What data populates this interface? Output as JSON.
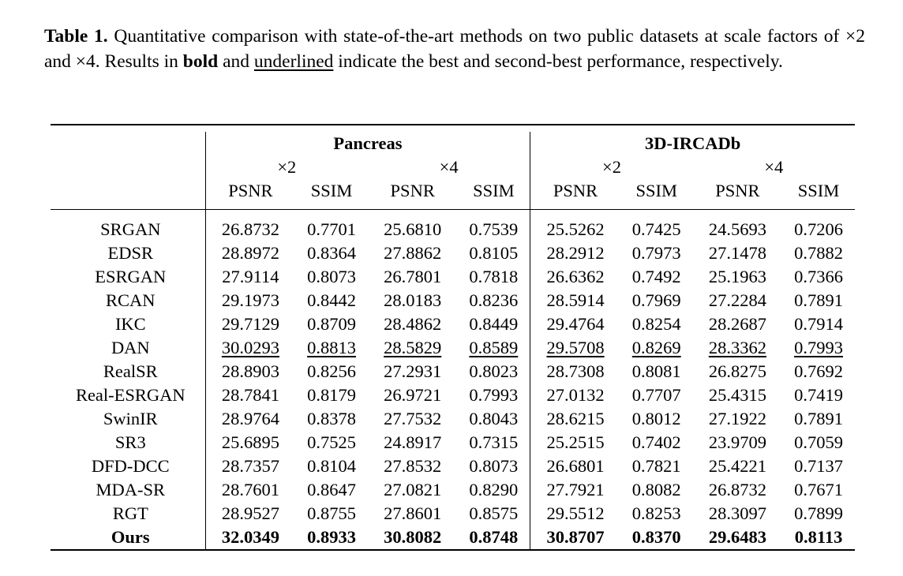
{
  "caption": {
    "label": "Table 1.",
    "text_1": " Quantitative comparison with state-of-the-art methods on two public datasets at scale factors of ×2 and ×4. Results in ",
    "bold_word": "bold",
    "text_2": " and ",
    "underlined_word": "underlined",
    "text_3": " indicate the best and second-best performance, respectively."
  },
  "table": {
    "datasets": [
      "Pancreas",
      "3D-IRCADb"
    ],
    "scales": [
      "×2",
      "×4",
      "×2",
      "×4"
    ],
    "metrics": [
      "PSNR",
      "SSIM",
      "PSNR",
      "SSIM",
      "PSNR",
      "SSIM",
      "PSNR",
      "SSIM"
    ],
    "rows": [
      {
        "method": "SRGAN",
        "values": [
          "26.8732",
          "0.7701",
          "25.6810",
          "0.7539",
          "25.5262",
          "0.7425",
          "24.5693",
          "0.7206"
        ]
      },
      {
        "method": "EDSR",
        "values": [
          "28.8972",
          "0.8364",
          "27.8862",
          "0.8105",
          "28.2912",
          "0.7973",
          "27.1478",
          "0.7882"
        ]
      },
      {
        "method": "ESRGAN",
        "values": [
          "27.9114",
          "0.8073",
          "26.7801",
          "0.7818",
          "26.6362",
          "0.7492",
          "25.1963",
          "0.7366"
        ]
      },
      {
        "method": "RCAN",
        "values": [
          "29.1973",
          "0.8442",
          "28.0183",
          "0.8236",
          "28.5914",
          "0.7969",
          "27.2284",
          "0.7891"
        ]
      },
      {
        "method": "IKC",
        "values": [
          "29.7129",
          "0.8709",
          "28.4862",
          "0.8449",
          "29.4764",
          "0.8254",
          "28.2687",
          "0.7914"
        ]
      },
      {
        "method": "DAN",
        "values": [
          "30.0293",
          "0.8813",
          "28.5829",
          "0.8589",
          "29.5708",
          "0.8269",
          "28.3362",
          "0.7993"
        ],
        "second_best": true
      },
      {
        "method": "RealSR",
        "values": [
          "28.8903",
          "0.8256",
          "27.2931",
          "0.8023",
          "28.7308",
          "0.8081",
          "26.8275",
          "0.7692"
        ]
      },
      {
        "method": "Real-ESRGAN",
        "values": [
          "28.7841",
          "0.8179",
          "26.9721",
          "0.7993",
          "27.0132",
          "0.7707",
          "25.4315",
          "0.7419"
        ]
      },
      {
        "method": "SwinIR",
        "values": [
          "28.9764",
          "0.8378",
          "27.7532",
          "0.8043",
          "28.6215",
          "0.8012",
          "27.1922",
          "0.7891"
        ]
      },
      {
        "method": "SR3",
        "values": [
          "25.6895",
          "0.7525",
          "24.8917",
          "0.7315",
          "25.2515",
          "0.7402",
          "23.9709",
          "0.7059"
        ]
      },
      {
        "method": "DFD-DCC",
        "values": [
          "28.7357",
          "0.8104",
          "27.8532",
          "0.8073",
          "26.6801",
          "0.7821",
          "25.4221",
          "0.7137"
        ]
      },
      {
        "method": "MDA-SR",
        "values": [
          "28.7601",
          "0.8647",
          "27.0821",
          "0.8290",
          "27.7921",
          "0.8082",
          "26.8732",
          "0.7671"
        ]
      },
      {
        "method": "RGT",
        "values": [
          "28.9527",
          "0.8755",
          "27.8601",
          "0.8575",
          "29.5512",
          "0.8253",
          "28.3097",
          "0.7899"
        ]
      },
      {
        "method": "Ours",
        "values": [
          "32.0349",
          "0.8933",
          "30.8082",
          "0.8748",
          "30.8707",
          "0.8370",
          "29.6483",
          "0.8113"
        ],
        "best": true
      }
    ]
  }
}
